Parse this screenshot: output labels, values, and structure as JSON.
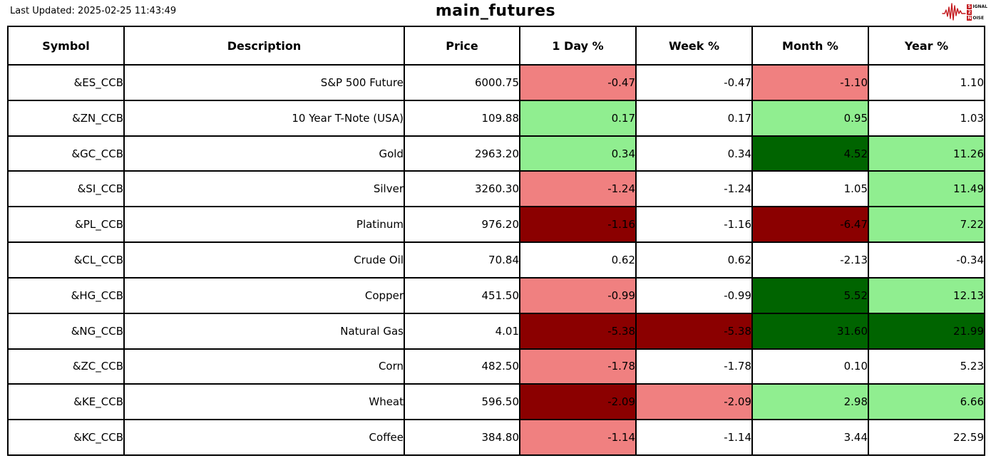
{
  "header": {
    "last_updated": "Last Updated: 2025-02-25 11:43:49",
    "title": "main_futures",
    "logo": {
      "word1_first": "S",
      "word1_rest": "IGNAL",
      "word2": "2",
      "word3_first": "N",
      "word3_rest": "OISE"
    }
  },
  "colors": {
    "logo_red": "#c41a1f",
    "cell_colors": {
      "lightred": "#F08080",
      "darkred": "#8B0000",
      "lightgreen": "#90EE90",
      "darkgreen": "#006400",
      "none": "transparent"
    }
  },
  "table": {
    "columns": [
      "Symbol",
      "Description",
      "Price",
      "1 Day %",
      "Week %",
      "Month %",
      "Year %"
    ],
    "column_keys": [
      "symbol",
      "description",
      "price",
      "day-pct",
      "week-pct",
      "month-pct",
      "year-pct"
    ],
    "rows": [
      {
        "symbol": "&ES_CCB",
        "description": "S&P 500 Future",
        "price": "6000.75",
        "pcts": [
          {
            "v": "-0.47",
            "bg": "lightred"
          },
          {
            "v": "-0.47",
            "bg": "none"
          },
          {
            "v": "-1.10",
            "bg": "lightred"
          },
          {
            "v": "1.10",
            "bg": "none"
          }
        ]
      },
      {
        "symbol": "&ZN_CCB",
        "description": "10 Year T-Note (USA)",
        "price": "109.88",
        "pcts": [
          {
            "v": "0.17",
            "bg": "lightgreen"
          },
          {
            "v": "0.17",
            "bg": "none"
          },
          {
            "v": "0.95",
            "bg": "lightgreen"
          },
          {
            "v": "1.03",
            "bg": "none"
          }
        ]
      },
      {
        "symbol": "&GC_CCB",
        "description": "Gold",
        "price": "2963.20",
        "pcts": [
          {
            "v": "0.34",
            "bg": "lightgreen"
          },
          {
            "v": "0.34",
            "bg": "none"
          },
          {
            "v": "4.52",
            "bg": "darkgreen"
          },
          {
            "v": "11.26",
            "bg": "lightgreen"
          }
        ]
      },
      {
        "symbol": "&SI_CCB",
        "description": "Silver",
        "price": "3260.30",
        "pcts": [
          {
            "v": "-1.24",
            "bg": "lightred"
          },
          {
            "v": "-1.24",
            "bg": "none"
          },
          {
            "v": "1.05",
            "bg": "none"
          },
          {
            "v": "11.49",
            "bg": "lightgreen"
          }
        ]
      },
      {
        "symbol": "&PL_CCB",
        "description": "Platinum",
        "price": "976.20",
        "pcts": [
          {
            "v": "-1.16",
            "bg": "darkred"
          },
          {
            "v": "-1.16",
            "bg": "none"
          },
          {
            "v": "-6.47",
            "bg": "darkred"
          },
          {
            "v": "7.22",
            "bg": "lightgreen"
          }
        ]
      },
      {
        "symbol": "&CL_CCB",
        "description": "Crude Oil",
        "price": "70.84",
        "pcts": [
          {
            "v": "0.62",
            "bg": "none"
          },
          {
            "v": "0.62",
            "bg": "none"
          },
          {
            "v": "-2.13",
            "bg": "none"
          },
          {
            "v": "-0.34",
            "bg": "none"
          }
        ]
      },
      {
        "symbol": "&HG_CCB",
        "description": "Copper",
        "price": "451.50",
        "pcts": [
          {
            "v": "-0.99",
            "bg": "lightred"
          },
          {
            "v": "-0.99",
            "bg": "none"
          },
          {
            "v": "5.52",
            "bg": "darkgreen"
          },
          {
            "v": "12.13",
            "bg": "lightgreen"
          }
        ]
      },
      {
        "symbol": "&NG_CCB",
        "description": "Natural Gas",
        "price": "4.01",
        "pcts": [
          {
            "v": "-5.38",
            "bg": "darkred"
          },
          {
            "v": "-5.38",
            "bg": "darkred"
          },
          {
            "v": "31.60",
            "bg": "darkgreen"
          },
          {
            "v": "21.99",
            "bg": "darkgreen"
          }
        ]
      },
      {
        "symbol": "&ZC_CCB",
        "description": "Corn",
        "price": "482.50",
        "pcts": [
          {
            "v": "-1.78",
            "bg": "lightred"
          },
          {
            "v": "-1.78",
            "bg": "none"
          },
          {
            "v": "0.10",
            "bg": "none"
          },
          {
            "v": "5.23",
            "bg": "none"
          }
        ]
      },
      {
        "symbol": "&KE_CCB",
        "description": "Wheat",
        "price": "596.50",
        "pcts": [
          {
            "v": "-2.09",
            "bg": "darkred"
          },
          {
            "v": "-2.09",
            "bg": "lightred"
          },
          {
            "v": "2.98",
            "bg": "lightgreen"
          },
          {
            "v": "6.66",
            "bg": "lightgreen"
          }
        ]
      },
      {
        "symbol": "&KC_CCB",
        "description": "Coffee",
        "price": "384.80",
        "pcts": [
          {
            "v": "-1.14",
            "bg": "lightred"
          },
          {
            "v": "-1.14",
            "bg": "none"
          },
          {
            "v": "3.44",
            "bg": "none"
          },
          {
            "v": "22.59",
            "bg": "none"
          }
        ]
      }
    ]
  }
}
